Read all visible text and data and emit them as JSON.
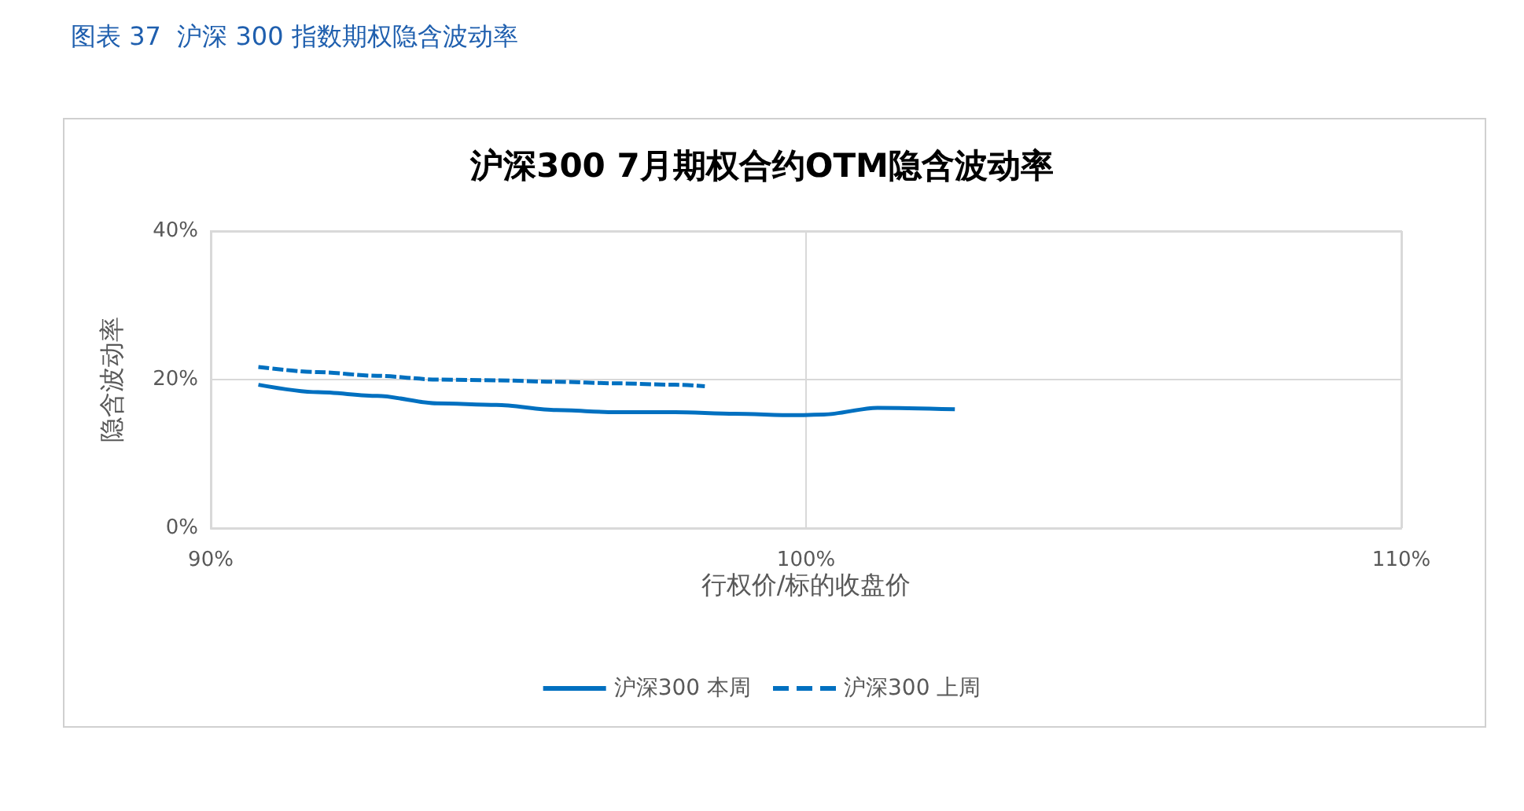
{
  "chart_data": {
    "type": "line",
    "title": "图表 37  沪深 300 指数期权隐含波动率",
    "subtitle": "沪深300 7月期权合约OTM隐含波动率",
    "xlabel": "行权价/标的收盘价",
    "ylabel": "隐含波动率",
    "xlim": [
      90,
      110
    ],
    "xticks": [
      {
        "value": 90,
        "label": "90%"
      },
      {
        "value": 100,
        "label": "100%"
      },
      {
        "value": 110,
        "label": "110%"
      }
    ],
    "ylim": [
      0,
      40
    ],
    "yticks": [
      {
        "value": 0,
        "label": "0%"
      },
      {
        "value": 20,
        "label": "20%"
      },
      {
        "value": 40,
        "label": "40%"
      }
    ],
    "grid": true,
    "legend": "bottom",
    "marker": "none",
    "series": [
      {
        "name": "沪深300 本周",
        "color": "#0070c0",
        "line_style": "solid",
        "x": [
          90.8,
          91.8,
          92.8,
          93.8,
          94.8,
          95.8,
          96.8,
          97.8,
          98.8,
          99.8,
          100.3,
          101.2,
          102.5
        ],
        "values": [
          19.3,
          18.3,
          17.8,
          16.8,
          16.6,
          15.9,
          15.6,
          15.6,
          15.4,
          15.2,
          15.3,
          16.2,
          16.0
        ]
      },
      {
        "name": "沪深300 上周",
        "color": "#0070c0",
        "line_style": "dashed",
        "x": [
          90.8,
          91.8,
          92.8,
          93.8,
          94.8,
          95.8,
          96.8,
          97.8,
          98.3
        ],
        "values": [
          21.7,
          21.0,
          20.5,
          20.0,
          19.9,
          19.7,
          19.5,
          19.3,
          19.1
        ]
      }
    ]
  }
}
